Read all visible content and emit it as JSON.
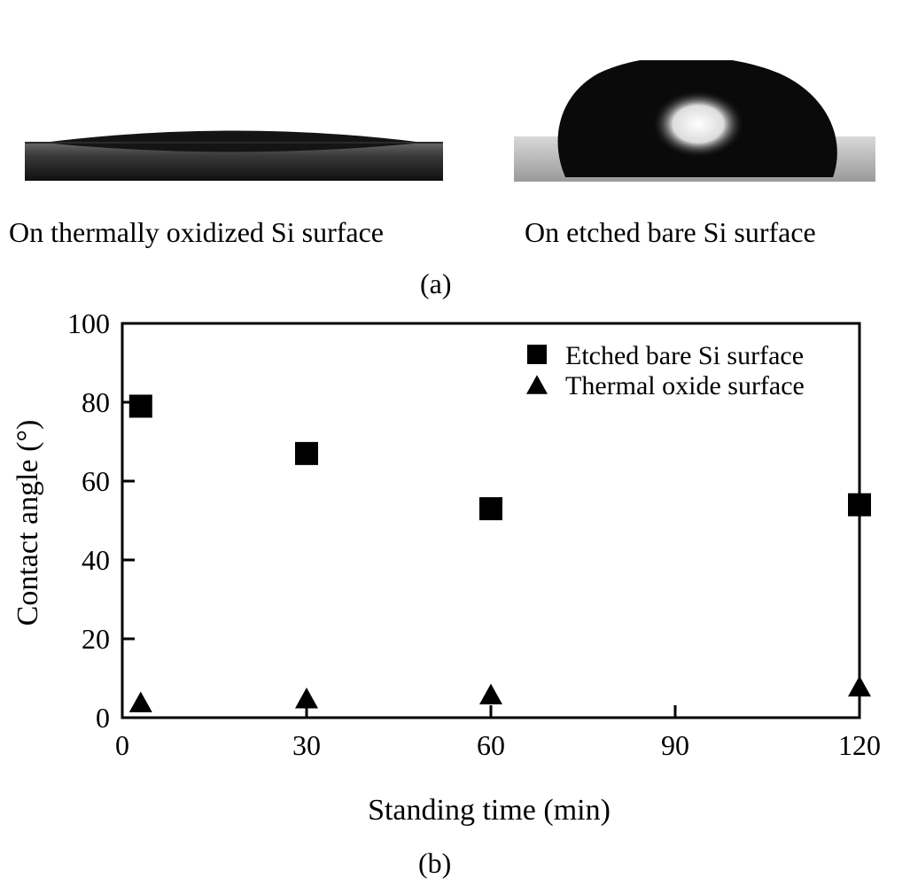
{
  "panel_a": {
    "label": "(a)",
    "left_caption": "On thermally oxidized Si surface",
    "right_caption": "On etched bare Si surface"
  },
  "panel_b": {
    "label": "(b)"
  },
  "chart_data": {
    "type": "scatter",
    "xlabel": "Standing time (min)",
    "ylabel": "Contact angle (°)",
    "xlim": [
      0,
      120
    ],
    "ylim": [
      0,
      100
    ],
    "xticks": [
      0,
      30,
      60,
      90,
      120
    ],
    "yticks": [
      0,
      20,
      40,
      60,
      80,
      100
    ],
    "grid": false,
    "legend_position": "top-right",
    "series": [
      {
        "name": "Etched bare Si surface",
        "marker": "square",
        "color": "#000000",
        "x": [
          3,
          30,
          60,
          120
        ],
        "y": [
          79,
          67,
          53,
          54
        ]
      },
      {
        "name": "Thermal oxide surface",
        "marker": "triangle",
        "color": "#000000",
        "x": [
          3,
          30,
          60,
          120
        ],
        "y": [
          4,
          5,
          6,
          8
        ]
      }
    ]
  }
}
